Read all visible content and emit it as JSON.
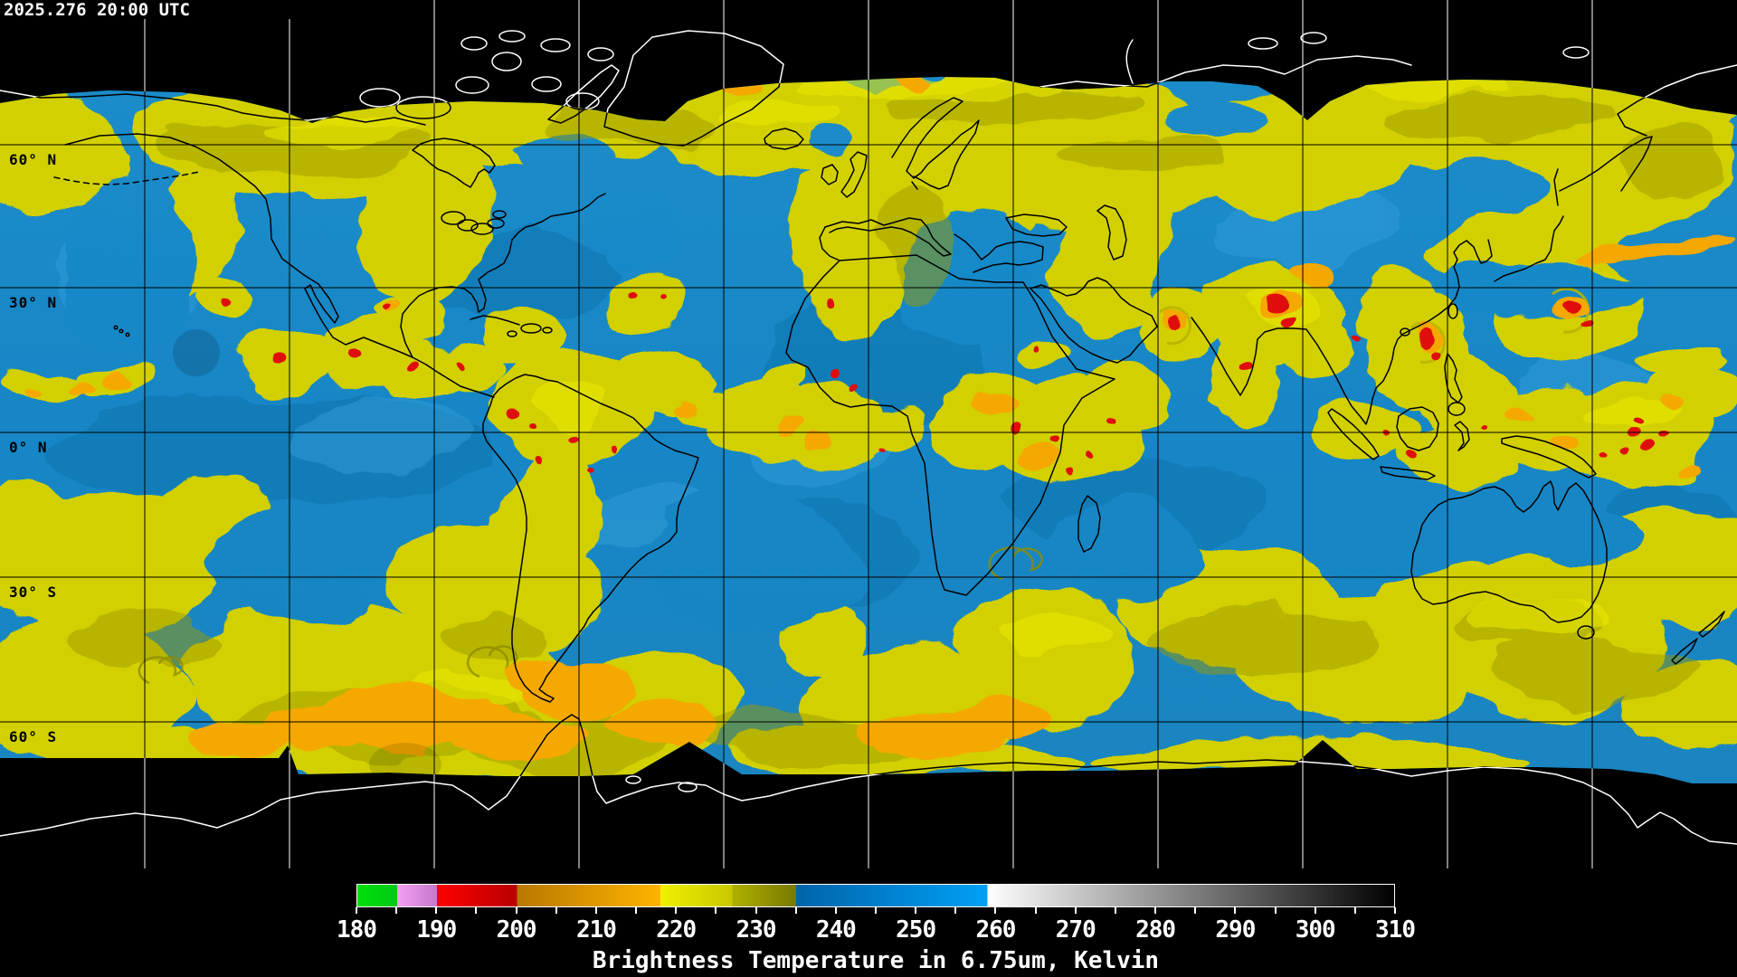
{
  "header": {
    "timestamp": "2025.276 20:00 UTC"
  },
  "map": {
    "latitude_labels": [
      "60° N",
      "30° N",
      "0° N",
      "30° S",
      "60° S"
    ],
    "colors": {
      "background": "#000000",
      "ocean_dry_blue": "#1886c5",
      "moist_yellow": "#d2d000",
      "moist_olive": "#9c9a00",
      "cold_orange": "#f5a800",
      "cold_red": "#e01111",
      "coast_in_data": "#000000",
      "coast_outside_data": "#ffffff",
      "grid_in_data": "#000000",
      "grid_outside_data": "#ffffff"
    }
  },
  "colorbar": {
    "caption": "Brightness Temperature in 6.75um, Kelvin",
    "range": [
      180,
      310
    ],
    "minor_tick_step": 5,
    "ticks": [
      180,
      190,
      200,
      210,
      220,
      230,
      240,
      250,
      260,
      270,
      280,
      290,
      300,
      310
    ],
    "segments": [
      {
        "from": 180,
        "to": 185,
        "color_start": "#00e008",
        "color_end": "#00c814"
      },
      {
        "from": 185,
        "to": 190,
        "color_start": "#f2a0f2",
        "color_end": "#c678cc"
      },
      {
        "from": 190,
        "to": 200,
        "color_start": "#ff0000",
        "color_end": "#b80000"
      },
      {
        "from": 200,
        "to": 218,
        "color_start": "#b87800",
        "color_end": "#ffb400"
      },
      {
        "from": 218,
        "to": 227,
        "color_start": "#f0f000",
        "color_end": "#c8c800"
      },
      {
        "from": 227,
        "to": 235,
        "color_start": "#b0b000",
        "color_end": "#787800"
      },
      {
        "from": 235,
        "to": 259,
        "color_start": "#0064aa",
        "color_end": "#00a0f5"
      },
      {
        "from": 259,
        "to": 310,
        "color_start": "#ffffff",
        "color_end": "#000000"
      }
    ]
  }
}
